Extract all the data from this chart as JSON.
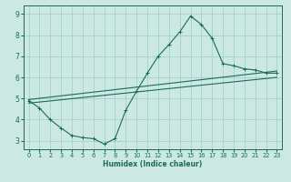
{
  "xlabel": "Humidex (Indice chaleur)",
  "bg_color": "#cce8e2",
  "grid_color": "#99cccc",
  "line_color": "#1a6b5a",
  "xlim": [
    -0.5,
    23.5
  ],
  "ylim": [
    2.6,
    9.4
  ],
  "xticks": [
    0,
    1,
    2,
    3,
    4,
    5,
    6,
    7,
    8,
    9,
    10,
    11,
    12,
    13,
    14,
    15,
    16,
    17,
    18,
    19,
    20,
    21,
    22,
    23
  ],
  "yticks": [
    3,
    4,
    5,
    6,
    7,
    8,
    9
  ],
  "line1_x": [
    0,
    1,
    2,
    3,
    4,
    5,
    6,
    7,
    8,
    9,
    10,
    11,
    12,
    13,
    14,
    15,
    16,
    17,
    18,
    19,
    20,
    21,
    22,
    23
  ],
  "line1_y": [
    4.9,
    4.55,
    4.0,
    3.6,
    3.25,
    3.15,
    3.1,
    2.85,
    3.1,
    4.45,
    5.35,
    6.2,
    7.0,
    7.55,
    8.15,
    8.9,
    8.5,
    7.85,
    6.65,
    6.55,
    6.4,
    6.35,
    6.2,
    6.2
  ],
  "line2_x": [
    0,
    23
  ],
  "line2_y": [
    4.95,
    6.3
  ],
  "line3_x": [
    0,
    23
  ],
  "line3_y": [
    4.78,
    6.0
  ],
  "xlabel_fontsize": 5.5,
  "tick_fontsize_x": 4.8,
  "tick_fontsize_y": 5.5
}
